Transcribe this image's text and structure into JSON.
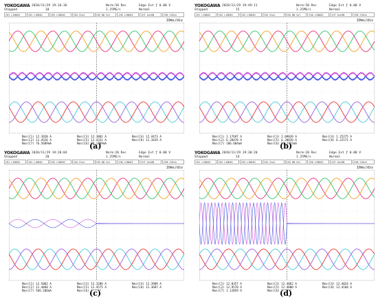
{
  "brand": "YOKOGAWA",
  "labels": [
    "(a)",
    "(b)",
    "(c)",
    "(d)"
  ],
  "panels": [
    {
      "date": "2020/11/29 19:16:36",
      "stopped": "Stopped",
      "count": "18",
      "norm": "Norm:50 Rec",
      "rate": "1.25MS/s",
      "edge": "Edge Ext ƒ 0.00 V",
      "mode": "Normal",
      "timediv": "10ms/div",
      "channels": [
        "CH1 LINK03",
        "CH2 LINK01",
        "CH3 LINK02",
        "CH4 Stat",
        "CH5 DW Sel",
        "CH6 LINK03",
        "CH7 Out6N",
        "CH8 CHSch"
      ],
      "meas": [
        [
          "Rms(C1) 12.3920 A",
          "Rms(C2) 12.4526 A",
          "Rms(C7) 76.5609mA"
        ],
        [
          "Rms(C3) 12.3881 A",
          "Rms(C5) 12.4331 A",
          "Rms(C6) 80.1789mA"
        ],
        [
          "Rms(C4) 12.4473 A",
          "Rms(C8) 12.3429 A",
          ""
        ]
      ]
    },
    {
      "date": "2020/11/29 19:49:11",
      "stopped": "Stopped",
      "count": "15",
      "norm": "Norm:50 Rec",
      "rate": "1.25MS/s",
      "edge": "Edge Ext ƒ 0.00 V",
      "mode": "Normal",
      "timediv": "10ms/div",
      "channels": [
        "CH1 LINK03",
        "CH2 LINK01",
        "CH3 LINK02",
        "CH4 Stat",
        "CH5 DW Sel",
        "CH6 LINK03",
        "CH7 Out6N",
        "CH8 CHSch"
      ],
      "meas": [
        [
          "Rms(C1) 2.17697 A",
          "Rms(C2) 6.20470 A",
          "Rms(C7) 106.604mA"
        ],
        [
          "Rms(C3) 2.09039 A",
          "Rms(C5) 6.20839 A",
          "Rms(C6) 91.2753mA"
        ],
        [
          "Rms(C4) 2.25275 A",
          "Rms(C8) 6.22171 A",
          ""
        ]
      ]
    },
    {
      "date": "2020/11/29 19:20:04",
      "stopped": "Stopped",
      "count": "20",
      "norm": "Norm:20 Rec",
      "rate": "1.25MS/s",
      "edge": "Edge Ext ƒ 0.00 V",
      "mode": "Normal",
      "timediv": "10ms/div",
      "channels": [
        "CH1 LINK03",
        "CH2 LINK01",
        "CH3 LINK02",
        "CH4 Stat",
        "CH5 DW Sel",
        "CH6 LINK03",
        "CH7 Out6N",
        "CH8 CHSch"
      ],
      "meas": [
        [
          "Rms(C1) 12.5002 A",
          "Rms(C2) 12.4860 A",
          "Rms(C7) 566.106mA"
        ],
        [
          "Rms(C3) 12.3288 A",
          "Rms(C5) 12.4575 A",
          "Rms(C6) ******"
        ],
        [
          "Rms(C4) 12.3989 A",
          "Rms(C8) 12.3687 A",
          ""
        ]
      ]
    },
    {
      "date": "2020/11/29 19:30:20",
      "stopped": "Stopped",
      "count": "14",
      "norm": "Norm:20 Rec",
      "rate": "1.25MS/s",
      "edge": "Edge Ext ƒ 0.00 V",
      "mode": "Normal",
      "timediv": "10ms/div",
      "channels": [
        "CH1 LINK03",
        "CH2 LINK01",
        "CH3 LINK02",
        "CH4 Stat",
        "CH5 DW Sel",
        "CH6 LINK03",
        "CH7 Out6N",
        "CH8 CHSch"
      ],
      "meas": [
        [
          "Rms(C1) 12.0357 A",
          "Rms(C2) 12.9570 A",
          "Rms(C7) 1.12059 A"
        ],
        [
          "Rms(C3) 12.4062 A",
          "Rms(C5) 12.4000 A",
          "Rms(C6) ******"
        ],
        [
          "Rms(C4) 12.4024 A",
          "Rms(C8) 12.4160 A",
          ""
        ]
      ]
    }
  ],
  "chart_data": [
    {
      "type": "line",
      "panel": "(a)",
      "xlabel": "",
      "ylabel": "",
      "xlim": [
        0,
        100
      ],
      "time_div": "10ms/div",
      "colors": {
        "ph_a": "#e62d7a",
        "ph_b": "#f0a020",
        "ph_c": "#2fc46b",
        "ph_d": "#40c8d8",
        "ph_e": "#e83030",
        "ph_f": "#9a5ce0",
        "circ1": "#c84fd8",
        "circ2": "#3a4fe0"
      },
      "top_group": {
        "amplitude": 12.4,
        "freq_hz": 50,
        "phases_deg": [
          0,
          120,
          240
        ]
      },
      "mid_group": {
        "amplitude": 0.08,
        "note_freq_hz": 100
      },
      "bottom_group": {
        "amplitude": 12.4,
        "freq_hz": 50,
        "phases_deg": [
          30,
          150,
          270
        ]
      },
      "step_time": null
    },
    {
      "type": "line",
      "panel": "(b)",
      "xlabel": "",
      "ylabel": "",
      "xlim": [
        0,
        100
      ],
      "time_div": "10ms/div",
      "colors": {
        "ph_a": "#e62d7a",
        "ph_b": "#f0a020",
        "ph_c": "#2fc46b",
        "ph_d": "#40c8d8",
        "ph_e": "#e83030",
        "ph_f": "#9a5ce0",
        "circ1": "#c84fd8",
        "circ2": "#3a4fe0"
      },
      "top_group": {
        "amplitude": 2.2,
        "freq_hz": 50,
        "phases_deg": [
          0,
          120,
          240
        ]
      },
      "mid_group": {
        "amplitude": 0.1,
        "note_freq_hz": 100
      },
      "bottom_group": {
        "amplitude": 6.2,
        "freq_hz": 50,
        "phases_deg": [
          30,
          150,
          270
        ]
      },
      "step_time": null
    },
    {
      "type": "line",
      "panel": "(c)",
      "xlabel": "",
      "ylabel": "",
      "xlim": [
        0,
        100
      ],
      "time_div": "10ms/div",
      "colors": {
        "ph_a": "#e62d7a",
        "ph_b": "#f0a020",
        "ph_c": "#2fc46b",
        "ph_d": "#40c8d8",
        "ph_e": "#e83030",
        "ph_f": "#9a5ce0",
        "circ1": "#c84fd8",
        "circ2": "#3a4fe0"
      },
      "top_group": {
        "amplitude": 12.4,
        "freq_hz": 50,
        "phases_deg": [
          0,
          120,
          240
        ]
      },
      "mid_group": {
        "amplitude": 0.55,
        "freq_hz": 50,
        "until_ms": 50
      },
      "bottom_group": {
        "amplitude": 12.4,
        "freq_hz": 50,
        "phases_deg": [
          30,
          150,
          270
        ]
      },
      "step_time": 50
    },
    {
      "type": "line",
      "panel": "(d)",
      "xlabel": "",
      "ylabel": "",
      "xlim": [
        0,
        100
      ],
      "time_div": "10ms/div",
      "colors": {
        "ph_a": "#e62d7a",
        "ph_b": "#f0a020",
        "ph_c": "#2fc46b",
        "ph_d": "#40c8d8",
        "ph_e": "#e83030",
        "ph_f": "#9a5ce0",
        "circ1": "#c84fd8",
        "circ2": "#3a4fe0"
      },
      "top_group": {
        "amplitude": 12.4,
        "freq_hz": 50,
        "phases_deg": [
          0,
          120,
          240
        ]
      },
      "mid_group": {
        "amplitude": 1.1,
        "freq_hz": 250,
        "until_ms": 50
      },
      "bottom_group": {
        "amplitude": 12.4,
        "freq_hz": 50,
        "phases_deg": [
          30,
          150,
          270
        ]
      },
      "step_time": 50
    }
  ]
}
